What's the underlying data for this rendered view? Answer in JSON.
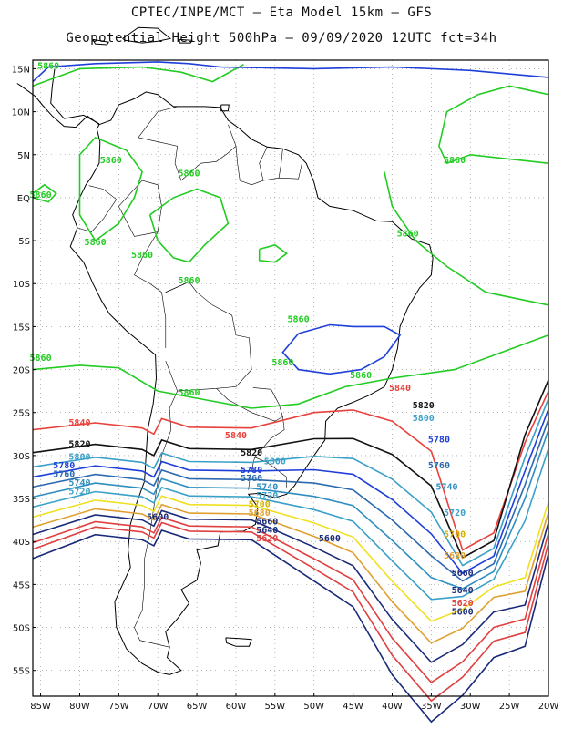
{
  "title_line1": "CPTEC/INPE/MCT –  Eta Model 15km – GFS",
  "title_line2": "Geopotential Height 500hPa – 09/09/2020 12UTC fct=34h",
  "colors": {
    "c5860": "#22cc22",
    "c5840": "#e8423c",
    "c5820": "#111111",
    "c5800": "#3aa0c8",
    "c5780": "#1f3fd8",
    "c5760": "#2c6ab0",
    "c5740": "#2f8ec0",
    "c5720": "#3aa0c8",
    "c5700": "#f0e020",
    "c5680": "#e0a030",
    "c5660": "#1a2a7a",
    "c5640": "#e04040",
    "coast": "#000000",
    "grid": "#888888"
  },
  "chart_data": {
    "type": "contour-map",
    "variable": "Geopotential Height 500hPa",
    "lon_range": [
      -86,
      -20
    ],
    "lat_range": [
      -58,
      16
    ],
    "x_ticks": [
      "85W",
      "80W",
      "75W",
      "70W",
      "65W",
      "60W",
      "55W",
      "50W",
      "45W",
      "40W",
      "35W",
      "30W",
      "25W",
      "20W"
    ],
    "y_ticks": [
      "15N",
      "10N",
      "5N",
      "EQ",
      "5S",
      "10S",
      "15S",
      "20S",
      "25S",
      "30S",
      "35S",
      "40S",
      "45S",
      "50S",
      "55S"
    ],
    "contour_levels": [
      5860,
      5840,
      5820,
      5800,
      5780,
      5760,
      5740,
      5720,
      5700,
      5680,
      5660,
      5640,
      5620,
      5600
    ],
    "contour_labels": [
      {
        "text": "5860",
        "lon": -84,
        "lat": 15
      },
      {
        "text": "5860",
        "lon": -76,
        "lat": 4
      },
      {
        "text": "5860",
        "lon": -66,
        "lat": 2.5
      },
      {
        "text": "5860",
        "lon": -85,
        "lat": 0
      },
      {
        "text": "5860",
        "lon": -78,
        "lat": -5.5
      },
      {
        "text": "5860",
        "lon": -72,
        "lat": -7
      },
      {
        "text": "5860",
        "lon": -66,
        "lat": -10
      },
      {
        "text": "5860",
        "lon": -32,
        "lat": 4
      },
      {
        "text": "5860",
        "lon": -38,
        "lat": -4.5
      },
      {
        "text": "5860",
        "lon": -52,
        "lat": -14.5
      },
      {
        "text": "5860",
        "lon": -54,
        "lat": -19.5
      },
      {
        "text": "5860",
        "lon": -85,
        "lat": -19
      },
      {
        "text": "5860",
        "lon": -66,
        "lat": -23
      },
      {
        "text": "5860",
        "lon": -44,
        "lat": -21
      },
      {
        "text": "5840",
        "lon": -80,
        "lat": -26.5
      },
      {
        "text": "5840",
        "lon": -60,
        "lat": -28
      },
      {
        "text": "5840",
        "lon": -39,
        "lat": -22.5
      },
      {
        "text": "5820",
        "lon": -80,
        "lat": -29
      },
      {
        "text": "5820",
        "lon": -58,
        "lat": -30
      },
      {
        "text": "5820",
        "lon": -36,
        "lat": -24.5
      },
      {
        "text": "5800",
        "lon": -80,
        "lat": -30.5
      },
      {
        "text": "5800",
        "lon": -55,
        "lat": -31
      },
      {
        "text": "5800",
        "lon": -36,
        "lat": -26
      },
      {
        "text": "5780",
        "lon": -82,
        "lat": -31.5
      },
      {
        "text": "5780",
        "lon": -58,
        "lat": -32
      },
      {
        "text": "5780",
        "lon": -34,
        "lat": -28.5
      },
      {
        "text": "5760",
        "lon": -82,
        "lat": -32.5
      },
      {
        "text": "5760",
        "lon": -58,
        "lat": -33
      },
      {
        "text": "5760",
        "lon": -34,
        "lat": -31.5
      },
      {
        "text": "5740",
        "lon": -80,
        "lat": -33.5
      },
      {
        "text": "5740",
        "lon": -56,
        "lat": -34
      },
      {
        "text": "5740",
        "lon": -33,
        "lat": -34
      },
      {
        "text": "5720",
        "lon": -80,
        "lat": -34.5
      },
      {
        "text": "5720",
        "lon": -56,
        "lat": -35
      },
      {
        "text": "5720",
        "lon": -32,
        "lat": -37
      },
      {
        "text": "5700",
        "lon": -57,
        "lat": -36
      },
      {
        "text": "5700",
        "lon": -32,
        "lat": -39.5
      },
      {
        "text": "5680",
        "lon": -57,
        "lat": -37
      },
      {
        "text": "5680",
        "lon": -32,
        "lat": -42
      },
      {
        "text": "5660",
        "lon": -56,
        "lat": -38
      },
      {
        "text": "5660",
        "lon": -31,
        "lat": -44
      },
      {
        "text": "5640",
        "lon": -56,
        "lat": -39
      },
      {
        "text": "5640",
        "lon": -31,
        "lat": -46
      },
      {
        "text": "5620",
        "lon": -56,
        "lat": -40
      },
      {
        "text": "5620",
        "lon": -31,
        "lat": -47.5
      },
      {
        "text": "5600",
        "lon": -70,
        "lat": -37.5
      },
      {
        "text": "5600",
        "lon": -48,
        "lat": -40
      },
      {
        "text": "5600",
        "lon": -31,
        "lat": -48.5
      }
    ]
  }
}
